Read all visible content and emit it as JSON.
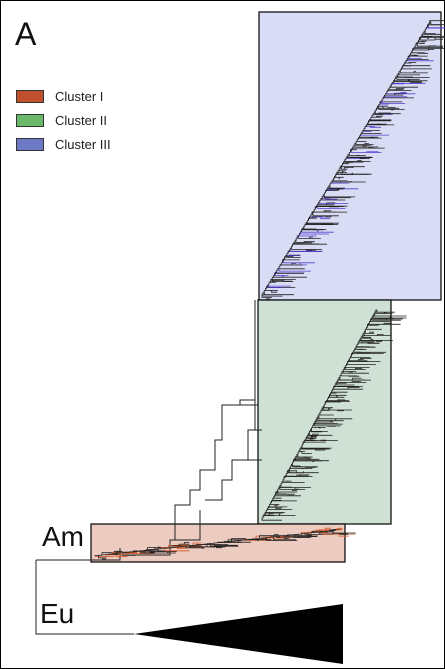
{
  "figure": {
    "panel_label": "A",
    "legend": [
      {
        "label": "Cluster I",
        "color": "#c0502e"
      },
      {
        "label": "Cluster II",
        "color": "#6bb86b"
      },
      {
        "label": "Cluster III",
        "color": "#6d78c6"
      }
    ],
    "clade_labels": {
      "american": "Am",
      "european": "Eu"
    },
    "box_colors": {
      "cluster_i": "#eccbc1",
      "cluster_ii": "#cfe1d4",
      "cluster_iii": "#d9dcf5"
    },
    "highlight_branch_colors": {
      "cluster_i": "#d45a24",
      "cluster_iii": "#5a3fd0"
    }
  }
}
